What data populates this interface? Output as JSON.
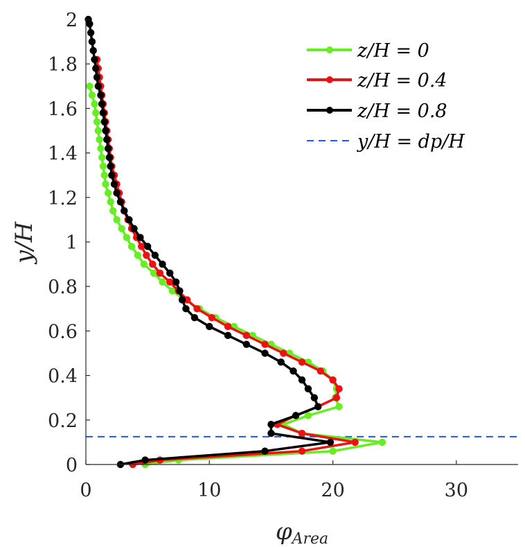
{
  "chart_data": {
    "type": "line",
    "xlabel": "φArea",
    "ylabel": "y/H",
    "xlim": [
      0,
      35
    ],
    "ylim": [
      0,
      2
    ],
    "xticks": [
      0,
      10,
      20,
      30
    ],
    "yticks": [
      0,
      0.2,
      0.4,
      0.6,
      0.8,
      1,
      1.2,
      1.4,
      1.6,
      1.8,
      2
    ],
    "grid": false,
    "legend_position": "top-right",
    "series": [
      {
        "name": "z/H = 0",
        "color": "#66ee22",
        "x": [
          4.8,
          7.5,
          20.0,
          24.0,
          17.5,
          16.0,
          18.0,
          20.5,
          20.2,
          20.3,
          20.0,
          19.2,
          18.0,
          16.5,
          15.0,
          13.5,
          12.0,
          10.5,
          9.2,
          8.0,
          7.0,
          6.2,
          5.5,
          4.7,
          4.2,
          3.7,
          3.3,
          2.9,
          2.5,
          2.2,
          2.0,
          1.8,
          1.6,
          1.5,
          1.4,
          1.3,
          1.2,
          1.1,
          1.0,
          0.9,
          0.8,
          0.7,
          0.5,
          0.3
        ],
        "y": [
          0.0,
          0.02,
          0.06,
          0.1,
          0.14,
          0.18,
          0.22,
          0.26,
          0.3,
          0.34,
          0.38,
          0.42,
          0.46,
          0.5,
          0.54,
          0.58,
          0.62,
          0.66,
          0.7,
          0.74,
          0.78,
          0.82,
          0.86,
          0.9,
          0.94,
          0.98,
          1.02,
          1.06,
          1.1,
          1.14,
          1.18,
          1.22,
          1.26,
          1.3,
          1.34,
          1.38,
          1.42,
          1.46,
          1.5,
          1.54,
          1.58,
          1.62,
          1.66,
          1.7
        ]
      },
      {
        "name": "z/H = 0.4",
        "color": "#ee1111",
        "x": [
          3.8,
          6.0,
          17.5,
          21.8,
          17.5,
          15.5,
          17.0,
          18.8,
          20.3,
          20.5,
          20.0,
          19.0,
          17.5,
          16.0,
          14.5,
          13.0,
          11.5,
          10.2,
          9.0,
          8.2,
          7.5,
          6.8,
          6.0,
          5.4,
          4.9,
          4.5,
          4.1,
          3.7,
          3.4,
          3.1,
          2.9,
          2.7,
          2.5,
          2.3,
          2.1,
          2.0,
          1.9,
          1.8,
          1.7,
          1.6,
          1.5,
          1.4,
          1.3,
          1.2,
          1.1,
          1.0,
          0.9
        ],
        "y": [
          0.0,
          0.02,
          0.06,
          0.1,
          0.14,
          0.18,
          0.22,
          0.26,
          0.3,
          0.34,
          0.38,
          0.42,
          0.46,
          0.5,
          0.54,
          0.58,
          0.62,
          0.66,
          0.7,
          0.74,
          0.78,
          0.82,
          0.86,
          0.9,
          0.94,
          0.98,
          1.02,
          1.06,
          1.1,
          1.14,
          1.18,
          1.22,
          1.26,
          1.3,
          1.34,
          1.38,
          1.42,
          1.46,
          1.5,
          1.54,
          1.58,
          1.62,
          1.66,
          1.7,
          1.74,
          1.78,
          1.82
        ]
      },
      {
        "name": "z/H = 0.8",
        "color": "#000000",
        "x": [
          2.8,
          4.8,
          14.5,
          19.8,
          15.0,
          15.0,
          17.0,
          18.8,
          18.5,
          18.0,
          17.5,
          16.8,
          15.8,
          14.5,
          13.0,
          11.5,
          10.0,
          8.8,
          8.1,
          7.8,
          7.6,
          7.3,
          6.8,
          6.2,
          5.6,
          5.0,
          4.4,
          3.9,
          3.5,
          3.1,
          2.8,
          2.5,
          2.3,
          2.1,
          2.0,
          1.9,
          1.8,
          1.7,
          1.6,
          1.5,
          1.4,
          1.3,
          1.2,
          1.0,
          0.9,
          0.8,
          0.7,
          0.6,
          0.5,
          0.4,
          0.3,
          0.2
        ],
        "y": [
          0.0,
          0.02,
          0.06,
          0.1,
          0.14,
          0.18,
          0.22,
          0.26,
          0.3,
          0.34,
          0.38,
          0.42,
          0.46,
          0.5,
          0.54,
          0.58,
          0.62,
          0.66,
          0.7,
          0.74,
          0.78,
          0.82,
          0.86,
          0.9,
          0.94,
          0.98,
          1.02,
          1.06,
          1.1,
          1.14,
          1.18,
          1.22,
          1.26,
          1.3,
          1.34,
          1.38,
          1.42,
          1.46,
          1.5,
          1.54,
          1.58,
          1.62,
          1.66,
          1.7,
          1.74,
          1.78,
          1.82,
          1.86,
          1.9,
          1.94,
          1.98,
          2.0
        ]
      }
    ],
    "reference_line": {
      "name": "y/H = dp/H",
      "color": "#2255ee",
      "y": 0.125
    }
  }
}
